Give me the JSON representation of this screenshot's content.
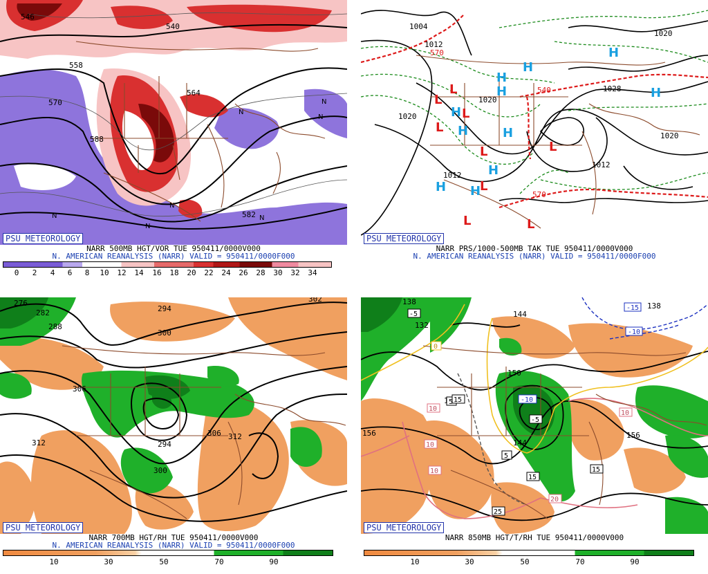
{
  "panels": [
    {
      "id": "p500",
      "badge": "PSU METEOROLOGY",
      "title_line1": "NARR 500MB HGT/VOR TUE 950411/0000V000",
      "title_line2": "N. AMERICAN REANALYSIS (NARR) VALID = 950411/0000F000",
      "colorbar_labels": [
        "0",
        "2",
        "4",
        "6",
        "8",
        "10",
        "12",
        "14",
        "16",
        "18",
        "20",
        "22",
        "24",
        "26",
        "28",
        "30",
        "32",
        "34"
      ],
      "contour_labels": [
        "546",
        "558",
        "570",
        "582",
        "540",
        "588",
        "564"
      ],
      "symbols": [
        "N",
        "N",
        "N",
        "N",
        "N",
        "N",
        "N"
      ]
    },
    {
      "id": "pprs",
      "badge": "PSU METEOROLOGY",
      "title_line1": "NARR PRS/1000-500MB TAK TUE 950411/0000V000",
      "title_line2": "N. AMERICAN REANALYSIS (NARR) VALID = 950411/0000F000",
      "contour_labels": [
        "1004",
        "1012",
        "1020",
        "1020",
        "1020",
        "1012",
        "1012",
        "1028",
        "1020",
        "540",
        "570",
        "570"
      ],
      "highs": [
        "H",
        "H",
        "H",
        "H",
        "H",
        "H",
        "H",
        "H",
        "H",
        "H",
        "H"
      ],
      "lows": [
        "L",
        "L",
        "L",
        "L",
        "L",
        "L",
        "L",
        "L",
        "L"
      ]
    },
    {
      "id": "p700",
      "badge": "PSU METEOROLOGY",
      "title_line1": "NARR 700MB HGT/RH TUE 950411/0000V000",
      "title_line2": "N. AMERICAN REANALYSIS (NARR) VALID = 950411/0000F000",
      "colorbar_labels": [
        "10",
        "30",
        "50",
        "70",
        "90"
      ],
      "contour_labels": [
        "276",
        "282",
        "288",
        "294",
        "300",
        "302",
        "306",
        "312",
        "294",
        "306",
        "312",
        "300"
      ]
    },
    {
      "id": "p850",
      "badge": "PSU METEOROLOGY",
      "title_line1": "NARR 850MB HGT/T/RH TUE 950411/0000V000",
      "title_line2": "",
      "colorbar_labels": [
        "10",
        "30",
        "50",
        "70",
        "90"
      ],
      "contour_labels": [
        "132",
        "138",
        "144",
        "150",
        "156",
        "156",
        "150",
        "138",
        "144"
      ],
      "temp_labels": [
        "-15",
        "-10",
        "-10",
        "-5",
        "-5",
        "0",
        "5",
        "5",
        "10",
        "10",
        "10",
        "10",
        "15",
        "15",
        "15",
        "20",
        "25"
      ]
    }
  ],
  "colors": {
    "vort_purple": "#7a5cd6",
    "vort_light": "#f7c4c4",
    "vort_red": "#d93030",
    "vort_dark": "#7a0a0a",
    "rh_orange": "#f0a060",
    "rh_green": "#1fb02a",
    "rh_dkgreen": "#0f7f1a",
    "border_brown": "#8b4a2b",
    "high_blue": "#1aa0e0",
    "low_red": "#dd1a1a",
    "thick_green": "#1a8a1a",
    "thick_red": "#dd1a1a"
  }
}
